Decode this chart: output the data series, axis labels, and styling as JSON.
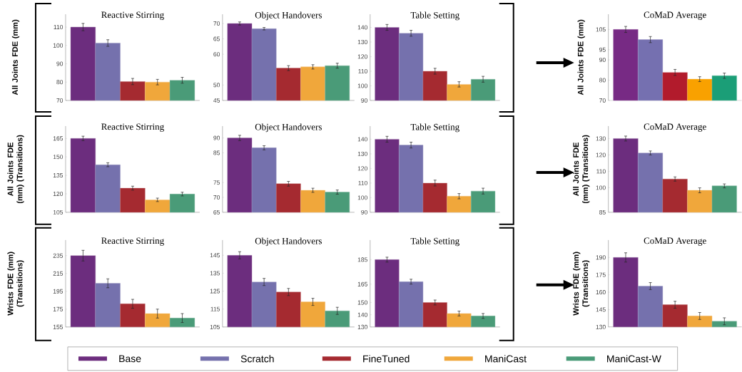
{
  "chart_data": [
    {
      "type": "bar",
      "title": "Reactive Stirring",
      "ylabel": "All Joints FDE (mm)",
      "categories": [
        null
      ],
      "ylim": [
        70,
        117
      ],
      "yticks": [
        70,
        80,
        90,
        100,
        110
      ],
      "tick_labels": "y",
      "legend": "bottom",
      "series": [
        {
          "name": "Base",
          "color": "#6c2d7e",
          "values": [
            110
          ],
          "errors": [
            2
          ]
        },
        {
          "name": "Scratch",
          "color": "#7571ad",
          "values": [
            101.3
          ],
          "errors": [
            1.8
          ]
        },
        {
          "name": "FineTuned",
          "color": "#a52a30",
          "values": [
            80.3
          ],
          "errors": [
            1.7
          ]
        },
        {
          "name": "ManiCast",
          "color": "#f0a73b",
          "values": [
            80
          ],
          "errors": [
            1.5
          ]
        },
        {
          "name": "ManiCast-W",
          "color": "#4a9b78",
          "values": [
            81
          ],
          "errors": [
            1.6
          ]
        }
      ]
    },
    {
      "type": "bar",
      "title": "Object Handovers",
      "categories": [
        null
      ],
      "ylim": [
        45,
        73
      ],
      "yticks": [
        45,
        50,
        60,
        65,
        70
      ],
      "tick_labels": "y",
      "series": [
        {
          "color": "#6c2d7e",
          "values": [
            70
          ],
          "errors": [
            0.5
          ]
        },
        {
          "color": "#7571ad",
          "values": [
            68.3
          ],
          "errors": [
            0.4
          ]
        },
        {
          "color": "#a52a30",
          "values": [
            55.5
          ],
          "errors": [
            0.8
          ]
        },
        {
          "color": "#f0a73b",
          "values": [
            55.9
          ],
          "errors": [
            0.7
          ]
        },
        {
          "color": "#4a9b78",
          "values": [
            56.3
          ],
          "errors": [
            0.8
          ]
        }
      ]
    },
    {
      "type": "bar",
      "title": "Table Setting",
      "categories": [
        null
      ],
      "ylim": [
        90,
        149
      ],
      "yticks": [
        90,
        100,
        110,
        120,
        130,
        140
      ],
      "tick_labels": "y",
      "series": [
        {
          "color": "#6c2d7e",
          "values": [
            140
          ],
          "errors": [
            2
          ]
        },
        {
          "color": "#7571ad",
          "values": [
            136
          ],
          "errors": [
            2
          ]
        },
        {
          "color": "#a52a30",
          "values": [
            110
          ],
          "errors": [
            2
          ]
        },
        {
          "color": "#f0a73b",
          "values": [
            101
          ],
          "errors": [
            1.8
          ]
        },
        {
          "color": "#4a9b78",
          "values": [
            104.5
          ],
          "errors": [
            2
          ]
        }
      ]
    },
    {
      "type": "bar",
      "title": "CoMaD Average",
      "ylabel": "All Joints FDE (mm)",
      "categories": [
        null
      ],
      "ylim": [
        70,
        112.5
      ],
      "yticks": [
        70,
        80,
        90,
        95,
        105
      ],
      "tick_labels": "y",
      "series": [
        {
          "color": "#772a84",
          "values": [
            105
          ],
          "errors": [
            1.5
          ]
        },
        {
          "color": "#7570b0",
          "values": [
            100
          ],
          "errors": [
            1.5
          ]
        },
        {
          "color": "#b21b2c",
          "values": [
            83.8
          ],
          "errors": [
            1.5
          ]
        },
        {
          "color": "#f9a100",
          "values": [
            80.5
          ],
          "errors": [
            1.2
          ]
        },
        {
          "color": "#1b9e77",
          "values": [
            82.2
          ],
          "errors": [
            1.3
          ]
        }
      ]
    },
    {
      "type": "bar",
      "title": "Reactive Stirring",
      "ylabel": "All Joints FDE (mm) (Transitions)",
      "categories": [
        null
      ],
      "ylim": [
        105,
        175
      ],
      "yticks": [
        105,
        120,
        135,
        150,
        165
      ],
      "tick_labels": "y",
      "series": [
        {
          "color": "#6c2d7e",
          "values": [
            165
          ],
          "errors": [
            1.8
          ]
        },
        {
          "color": "#7571ad",
          "values": [
            143.6
          ],
          "errors": [
            1.6
          ]
        },
        {
          "color": "#a52a30",
          "values": [
            124.6
          ],
          "errors": [
            1.6
          ]
        },
        {
          "color": "#f0a73b",
          "values": [
            115.1
          ],
          "errors": [
            1.4
          ]
        },
        {
          "color": "#4a9b78",
          "values": [
            119.8
          ],
          "errors": [
            1.5
          ]
        }
      ]
    },
    {
      "type": "bar",
      "title": "Object Handovers",
      "categories": [
        null
      ],
      "ylim": [
        65,
        94
      ],
      "yticks": [
        65,
        70,
        75,
        85,
        90
      ],
      "tick_labels": "y",
      "series": [
        {
          "color": "#6c2d7e",
          "values": [
            90
          ],
          "errors": [
            0.9
          ]
        },
        {
          "color": "#7571ad",
          "values": [
            86.7
          ],
          "errors": [
            0.7
          ]
        },
        {
          "color": "#a52a30",
          "values": [
            74.6
          ],
          "errors": [
            0.8
          ]
        },
        {
          "color": "#f0a73b",
          "values": [
            72.4
          ],
          "errors": [
            0.7
          ]
        },
        {
          "color": "#4a9b78",
          "values": [
            71.8
          ],
          "errors": [
            0.7
          ]
        }
      ]
    },
    {
      "type": "bar",
      "title": "Table Setting",
      "categories": [
        null
      ],
      "ylim": [
        90,
        149
      ],
      "yticks": [
        90,
        100,
        110,
        120,
        130,
        140
      ],
      "tick_labels": "y",
      "series": [
        {
          "color": "#6c2d7e",
          "values": [
            140
          ],
          "errors": [
            2
          ]
        },
        {
          "color": "#7571ad",
          "values": [
            136
          ],
          "errors": [
            2
          ]
        },
        {
          "color": "#a52a30",
          "values": [
            110
          ],
          "errors": [
            2
          ]
        },
        {
          "color": "#f0a73b",
          "values": [
            101
          ],
          "errors": [
            1.8
          ]
        },
        {
          "color": "#4a9b78",
          "values": [
            104.5
          ],
          "errors": [
            2
          ]
        }
      ]
    },
    {
      "type": "bar",
      "title": "CoMaD Average",
      "ylabel": "All Joints FDE (mm) (Transitions)",
      "categories": [
        null
      ],
      "ylim": [
        85,
        137.6
      ],
      "yticks": [
        85,
        100,
        110,
        120,
        130
      ],
      "tick_labels": "y",
      "series": [
        {
          "color": "#6c2d7e",
          "values": [
            130
          ],
          "errors": [
            1.5
          ]
        },
        {
          "color": "#7571ad",
          "values": [
            121.2
          ],
          "errors": [
            1.2
          ]
        },
        {
          "color": "#a52a30",
          "values": [
            105.3
          ],
          "errors": [
            1.3
          ]
        },
        {
          "color": "#f0a73b",
          "values": [
            98.4
          ],
          "errors": [
            1.5
          ]
        },
        {
          "color": "#4a9b78",
          "values": [
            101.1
          ],
          "errors": [
            1.2
          ]
        }
      ]
    },
    {
      "type": "bar",
      "title": "Reactive Stirring",
      "ylabel": "Wrists FDE (mm) (Transitions)",
      "categories": [
        null
      ],
      "ylim": [
        155,
        252.5
      ],
      "yticks": [
        155,
        175,
        195,
        215,
        235
      ],
      "tick_labels": "y",
      "series": [
        {
          "color": "#6c2d7e",
          "values": [
            235
          ],
          "errors": [
            6
          ]
        },
        {
          "color": "#7571ad",
          "values": [
            204
          ],
          "errors": [
            5
          ]
        },
        {
          "color": "#a52a30",
          "values": [
            181
          ],
          "errors": [
            5
          ]
        },
        {
          "color": "#f0a73b",
          "values": [
            170
          ],
          "errors": [
            5
          ]
        },
        {
          "color": "#4a9b78",
          "values": [
            165
          ],
          "errors": [
            5
          ]
        }
      ]
    },
    {
      "type": "bar",
      "title": "Object Handovers",
      "categories": [
        null
      ],
      "ylim": [
        105,
        153.5
      ],
      "yticks": [
        105,
        115,
        125,
        135,
        145
      ],
      "tick_labels": "y",
      "series": [
        {
          "color": "#6c2d7e",
          "values": [
            145
          ],
          "errors": [
            2
          ]
        },
        {
          "color": "#7571ad",
          "values": [
            130.1
          ],
          "errors": [
            2
          ]
        },
        {
          "color": "#a52a30",
          "values": [
            124.5
          ],
          "errors": [
            2
          ]
        },
        {
          "color": "#f0a73b",
          "values": [
            119
          ],
          "errors": [
            2
          ]
        },
        {
          "color": "#4a9b78",
          "values": [
            114
          ],
          "errors": [
            2
          ]
        }
      ]
    },
    {
      "type": "bar",
      "title": "Table Setting",
      "categories": [
        null
      ],
      "ylim": [
        130,
        201
      ],
      "yticks": [
        130,
        140,
        150,
        165,
        185
      ],
      "tick_labels": "y",
      "series": [
        {
          "color": "#6c2d7e",
          "values": [
            185
          ],
          "errors": [
            2
          ]
        },
        {
          "color": "#7571ad",
          "values": [
            167
          ],
          "errors": [
            2
          ]
        },
        {
          "color": "#a52a30",
          "values": [
            150
          ],
          "errors": [
            2
          ]
        },
        {
          "color": "#f0a73b",
          "values": [
            141
          ],
          "errors": [
            2
          ]
        },
        {
          "color": "#4a9b78",
          "values": [
            139
          ],
          "errors": [
            2
          ]
        }
      ]
    },
    {
      "type": "bar",
      "title": "CoMaD Average",
      "ylabel": "Wrists FDE (mm) (Transitions)",
      "categories": [
        null
      ],
      "ylim": [
        130,
        205
      ],
      "yticks": [
        130,
        145,
        160,
        175,
        190
      ],
      "tick_labels": "y",
      "series": [
        {
          "color": "#6c2d7e",
          "values": [
            190
          ],
          "errors": [
            4
          ]
        },
        {
          "color": "#7571ad",
          "values": [
            165.3
          ],
          "errors": [
            3
          ]
        },
        {
          "color": "#a52a30",
          "values": [
            149.2
          ],
          "errors": [
            3
          ]
        },
        {
          "color": "#f0a73b",
          "values": [
            139.5
          ],
          "errors": [
            3
          ]
        },
        {
          "color": "#4a9b78",
          "values": [
            134.9
          ],
          "errors": [
            3
          ]
        }
      ]
    }
  ]
}
